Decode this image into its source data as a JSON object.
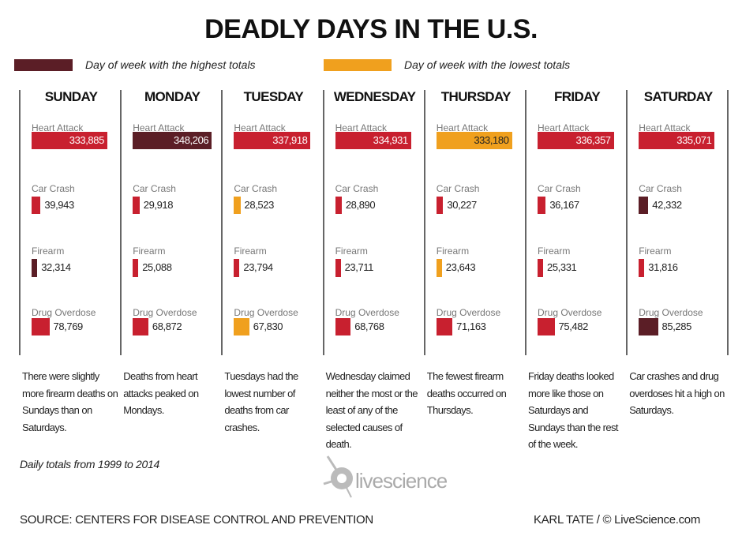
{
  "chart_data": {
    "type": "bar",
    "title": "DEADLY DAYS IN THE U.S.",
    "legend": {
      "high": {
        "label": "Day of week with the highest totals",
        "color": "#5b1e26"
      },
      "low": {
        "label": "Day of week with the lowest totals",
        "color": "#f0a01e"
      },
      "normal_color": "#c8202f"
    },
    "causes": [
      "Heart Attack",
      "Car Crash",
      "Firearm",
      "Drug Overdose"
    ],
    "days": [
      {
        "name": "SUNDAY",
        "values": [
          333885,
          39943,
          32314,
          78769
        ],
        "display": [
          "333,885",
          "39,943",
          "32,314",
          "78,769"
        ],
        "status": [
          "normal",
          "normal",
          "high",
          "normal"
        ],
        "note": "There were slightly more firearm deaths on Sundays than on Saturdays."
      },
      {
        "name": "MONDAY",
        "values": [
          348206,
          29918,
          25088,
          68872
        ],
        "display": [
          "348,206",
          "29,918",
          "25,088",
          "68,872"
        ],
        "status": [
          "high",
          "normal",
          "normal",
          "normal"
        ],
        "note": "Deaths from heart attacks peaked on Mondays."
      },
      {
        "name": "TUESDAY",
        "values": [
          337918,
          28523,
          23794,
          67830
        ],
        "display": [
          "337,918",
          "28,523",
          "23,794",
          "67,830"
        ],
        "status": [
          "normal",
          "low",
          "normal",
          "low"
        ],
        "note": "Tuesdays had the lowest number of deaths from car crashes."
      },
      {
        "name": "WEDNESDAY",
        "values": [
          334931,
          28890,
          23711,
          68768
        ],
        "display": [
          "334,931",
          "28,890",
          "23,711",
          "68,768"
        ],
        "status": [
          "normal",
          "normal",
          "normal",
          "normal"
        ],
        "note": "Wednesday claimed neither the most or the least of any of the selected causes of death."
      },
      {
        "name": "THURSDAY",
        "values": [
          333180,
          30227,
          23643,
          71163
        ],
        "display": [
          "333,180",
          "30,227",
          "23,643",
          "71,163"
        ],
        "status": [
          "low",
          "normal",
          "low",
          "normal"
        ],
        "note": "The fewest firearm deaths occurred on Thursdays."
      },
      {
        "name": "FRIDAY",
        "values": [
          336357,
          36167,
          25331,
          75482
        ],
        "display": [
          "336,357",
          "36,167",
          "25,331",
          "75,482"
        ],
        "status": [
          "normal",
          "normal",
          "normal",
          "normal"
        ],
        "note": "Friday deaths looked more like those on Saturdays and Sundays than the rest of the week."
      },
      {
        "name": "SATURDAY",
        "values": [
          335071,
          42332,
          31816,
          85285
        ],
        "display": [
          "335,071",
          "42,332",
          "31,816",
          "85,285"
        ],
        "status": [
          "normal",
          "high",
          "normal",
          "high"
        ],
        "note": "Car crashes and drug overdoses hit a high on Saturdays."
      }
    ]
  },
  "footer": {
    "subtitle": "Daily totals from 1999 to 2014",
    "source": "SOURCE: CENTERS FOR DISEASE CONTROL AND PREVENTION",
    "credit": "KARL TATE / © LiveScience.com",
    "logo_text": "livescience"
  }
}
